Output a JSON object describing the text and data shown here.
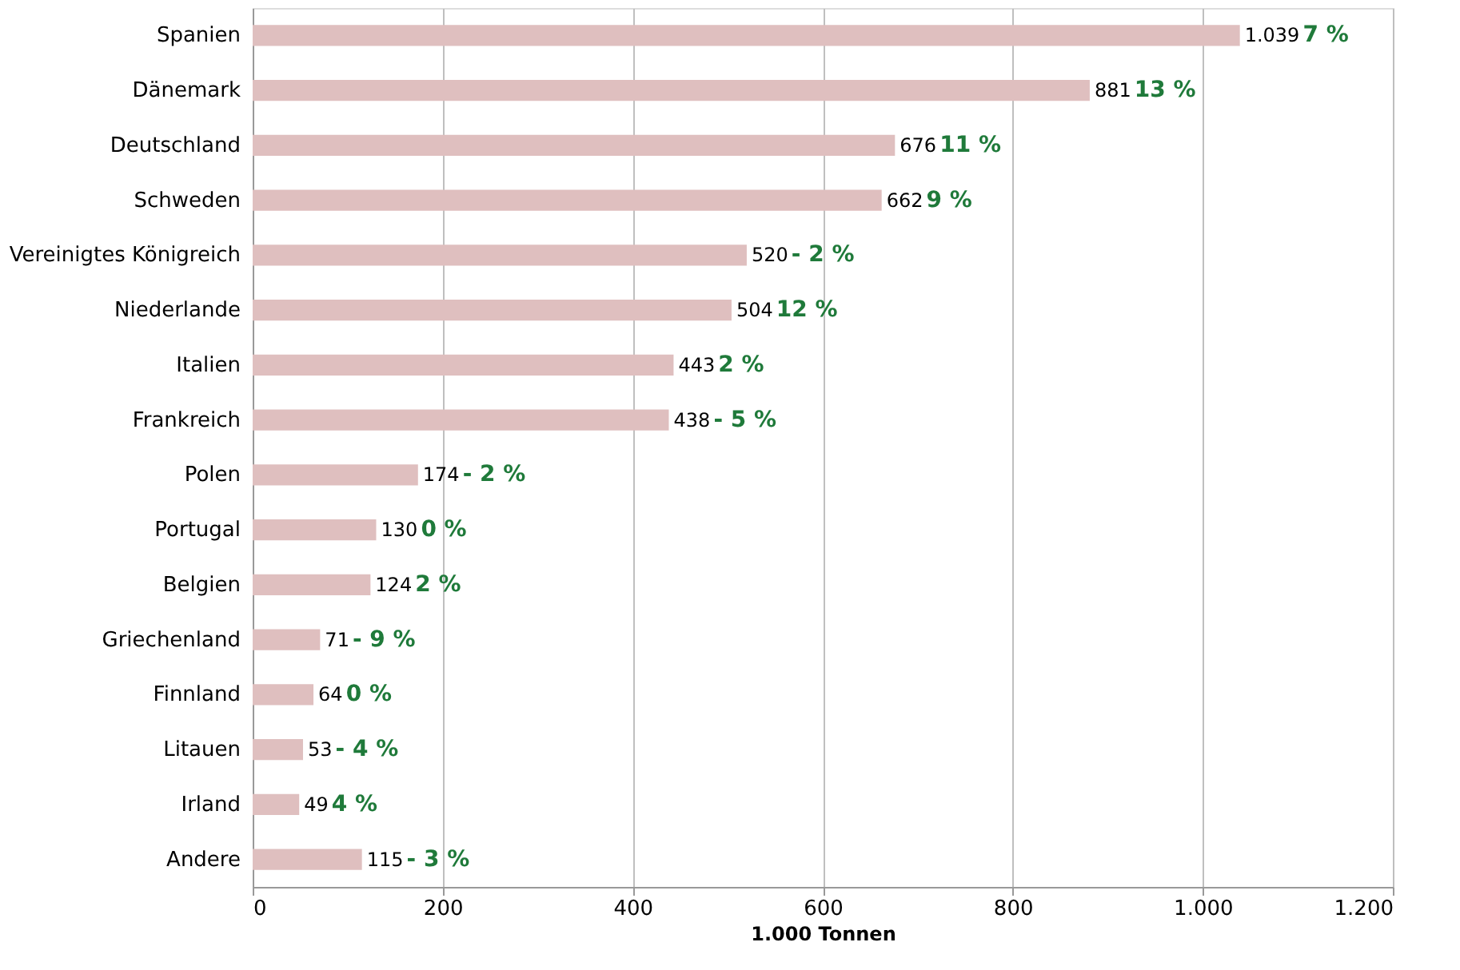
{
  "chart_data": {
    "type": "bar",
    "orientation": "horizontal",
    "xlabel": "1.000 Tonnen",
    "categories": [
      "Spanien",
      "Dänemark",
      "Deutschland",
      "Schweden",
      "Vereinigtes Königreich",
      "Niederlande",
      "Italien",
      "Frankreich",
      "Polen",
      "Portugal",
      "Belgien",
      "Griechenland",
      "Finnland",
      "Litauen",
      "Irland",
      "Andere"
    ],
    "values": [
      1039,
      881,
      676,
      662,
      520,
      504,
      443,
      438,
      174,
      130,
      124,
      71,
      64,
      53,
      49,
      115
    ],
    "value_labels": [
      "1.039",
      "881",
      "676",
      "662",
      "520",
      "504",
      "443",
      "438",
      "174",
      "130",
      "124",
      "71",
      "64",
      "53",
      "49",
      "115"
    ],
    "color": "#dfbfbf",
    "xlim": [
      0,
      1200
    ],
    "xticks": [
      0,
      200,
      400,
      600,
      800,
      {
        "value": 1000,
        "label": "1.000"
      },
      {
        "value": 1200,
        "label": "1.200"
      }
    ],
    "grid": "x",
    "annotations": [
      {
        "text": "7 %",
        "x": 1039,
        "y": "Spanien"
      },
      {
        "text": "13 %",
        "x": 881,
        "y": "Dänemark"
      },
      {
        "text": "11 %",
        "x": 676,
        "y": "Deutschland"
      },
      {
        "text": "9 %",
        "x": 662,
        "y": "Schweden"
      },
      {
        "text": "- 2 %",
        "x": 520,
        "y": "Vereinigtes Königreich"
      },
      {
        "text": "12 %",
        "x": 504,
        "y": "Niederlande"
      },
      {
        "text": "2 %",
        "x": 443,
        "y": "Italien"
      },
      {
        "text": "- 5 %",
        "x": 438,
        "y": "Frankreich"
      },
      {
        "text": "- 2 %",
        "x": 174,
        "y": "Polen"
      },
      {
        "text": "0 %",
        "x": 130,
        "y": "Portugal"
      },
      {
        "text": "2 %",
        "x": 124,
        "y": "Belgien"
      },
      {
        "text": "- 9 %",
        "x": 71,
        "y": "Griechenland"
      },
      {
        "text": "0 %",
        "x": 64,
        "y": "Finnland"
      },
      {
        "text": "- 4 %",
        "x": 53,
        "y": "Litauen"
      },
      {
        "text": "4 %",
        "x": 49,
        "y": "Irland"
      },
      {
        "text": "- 3 %",
        "x": 115,
        "y": "Andere"
      }
    ]
  }
}
